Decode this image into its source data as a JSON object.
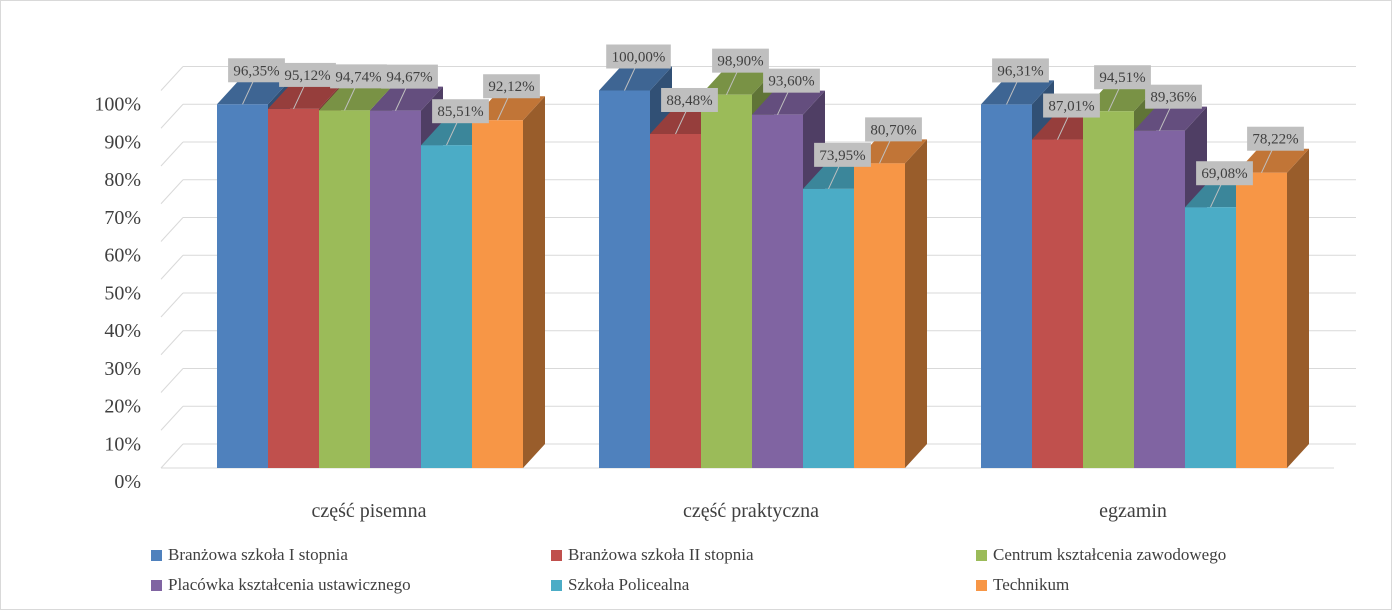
{
  "chart_data": {
    "type": "bar",
    "title": "",
    "xlabel": "",
    "ylabel": "",
    "ylim": [
      0,
      100
    ],
    "y_ticks": [
      "0%",
      "10%",
      "20%",
      "30%",
      "40%",
      "50%",
      "60%",
      "70%",
      "80%",
      "90%",
      "100%"
    ],
    "grid": true,
    "legend_position": "bottom",
    "categories": [
      "część pisemna",
      "część praktyczna",
      "egzamin"
    ],
    "series": [
      {
        "name": "Branżowa szkoła I stopnia",
        "color": "#4f81bd",
        "values": [
          96.35,
          100.0,
          96.31
        ],
        "labels": [
          "96,35%",
          "100,00%",
          "96,31%"
        ]
      },
      {
        "name": "Branżowa szkoła II stopnia",
        "color": "#c0504d",
        "values": [
          95.12,
          88.48,
          87.01
        ],
        "labels": [
          "95,12%",
          "88,48%",
          "87,01%"
        ]
      },
      {
        "name": "Centrum kształcenia zawodowego",
        "color": "#9bbb59",
        "values": [
          94.74,
          98.9,
          94.51
        ],
        "labels": [
          "94,74%",
          "98,90%",
          "94,51%"
        ]
      },
      {
        "name": "Placówka kształcenia ustawicznego",
        "color": "#8064a2",
        "values": [
          94.67,
          93.6,
          89.36
        ],
        "labels": [
          "94,67%",
          "93,60%",
          "89,36%"
        ]
      },
      {
        "name": "Szkoła Policealna",
        "color": "#4bacc6",
        "values": [
          85.51,
          73.95,
          69.08
        ],
        "labels": [
          "85,51%",
          "73,95%",
          "69,08%"
        ]
      },
      {
        "name": "Technikum",
        "color": "#f79646",
        "values": [
          92.12,
          80.7,
          78.22
        ],
        "labels": [
          "92,12%",
          "80,70%",
          "78,22%"
        ]
      }
    ]
  }
}
